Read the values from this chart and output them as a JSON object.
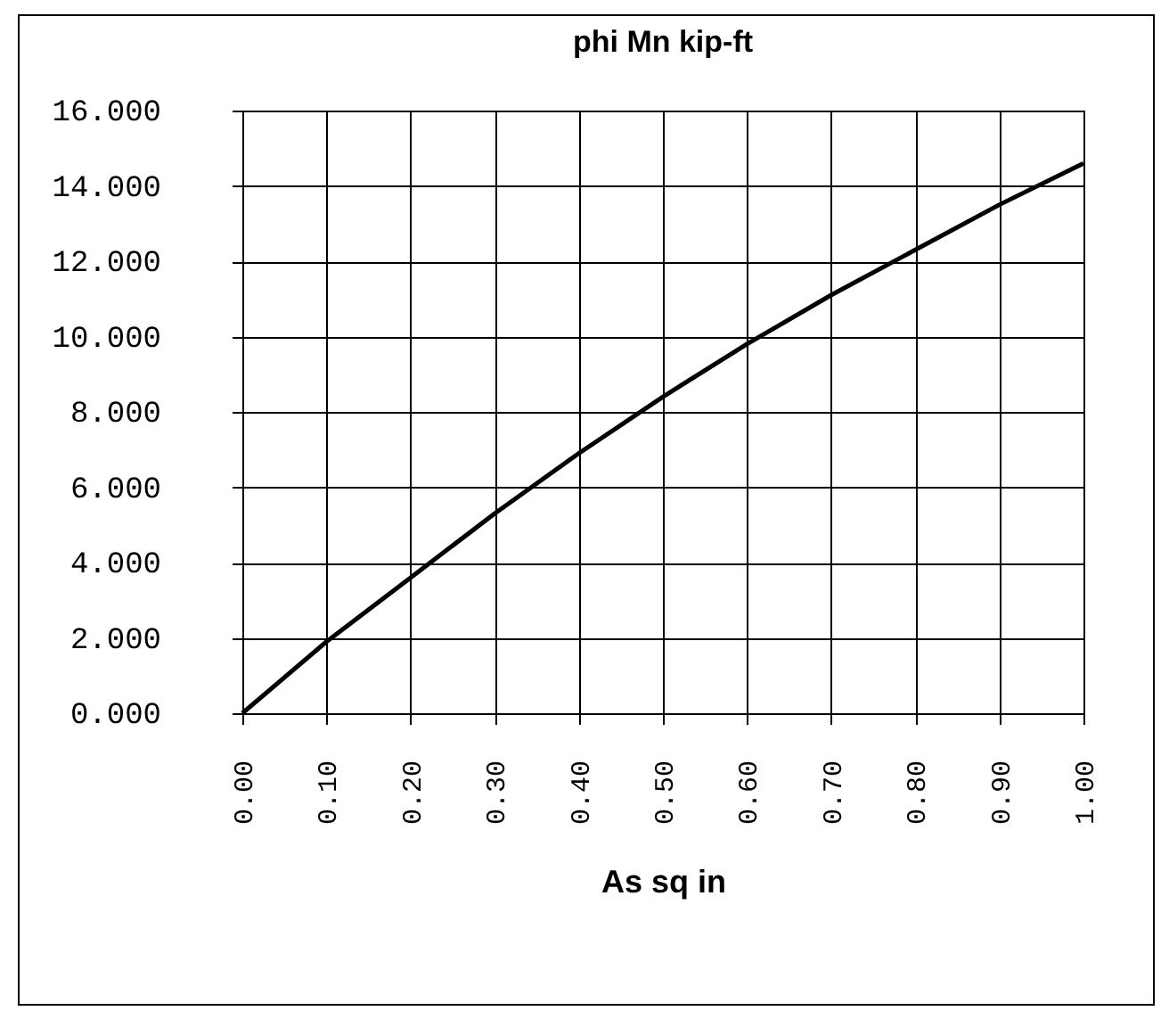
{
  "chart_data": {
    "type": "line",
    "title": "phi Mn   kip-ft",
    "xlabel": "As sq in",
    "x": [
      0,
      0.1,
      0.2,
      0.3,
      0.4,
      0.5,
      0.6,
      0.7,
      0.8,
      0.9,
      1.0
    ],
    "series": [
      {
        "color": "#000000",
        "values": [
          0,
          1.9,
          3.6,
          5.3,
          6.9,
          8.4,
          9.8,
          11.1,
          12.3,
          13.5,
          14.6
        ]
      }
    ],
    "xlim": [
      0,
      1
    ],
    "xticks": [
      {
        "value": 0,
        "label": "0.00"
      },
      {
        "value": 0.1,
        "label": "0.10"
      },
      {
        "value": 0.2,
        "label": "0.20"
      },
      {
        "value": 0.3,
        "label": "0.30"
      },
      {
        "value": 0.4,
        "label": "0.40"
      },
      {
        "value": 0.5,
        "label": "0.50"
      },
      {
        "value": 0.6,
        "label": "0.60"
      },
      {
        "value": 0.7,
        "label": "0.70"
      },
      {
        "value": 0.8,
        "label": "0.80"
      },
      {
        "value": 0.9,
        "label": "0.90"
      },
      {
        "value": 1,
        "label": "1.00"
      }
    ],
    "ylim": [
      0,
      16
    ],
    "yticks": [
      {
        "value": 0,
        "label": "0.000"
      },
      {
        "value": 2,
        "label": "2.000"
      },
      {
        "value": 4,
        "label": "4.000"
      },
      {
        "value": 6,
        "label": "6.000"
      },
      {
        "value": 8,
        "label": "8.000"
      },
      {
        "value": 10,
        "label": "10.000"
      },
      {
        "value": 12,
        "label": "12.000"
      },
      {
        "value": 14,
        "label": "14.000"
      },
      {
        "value": 16,
        "label": "16.000"
      }
    ],
    "grid": true,
    "marker": "none",
    "line_style": "solid"
  }
}
